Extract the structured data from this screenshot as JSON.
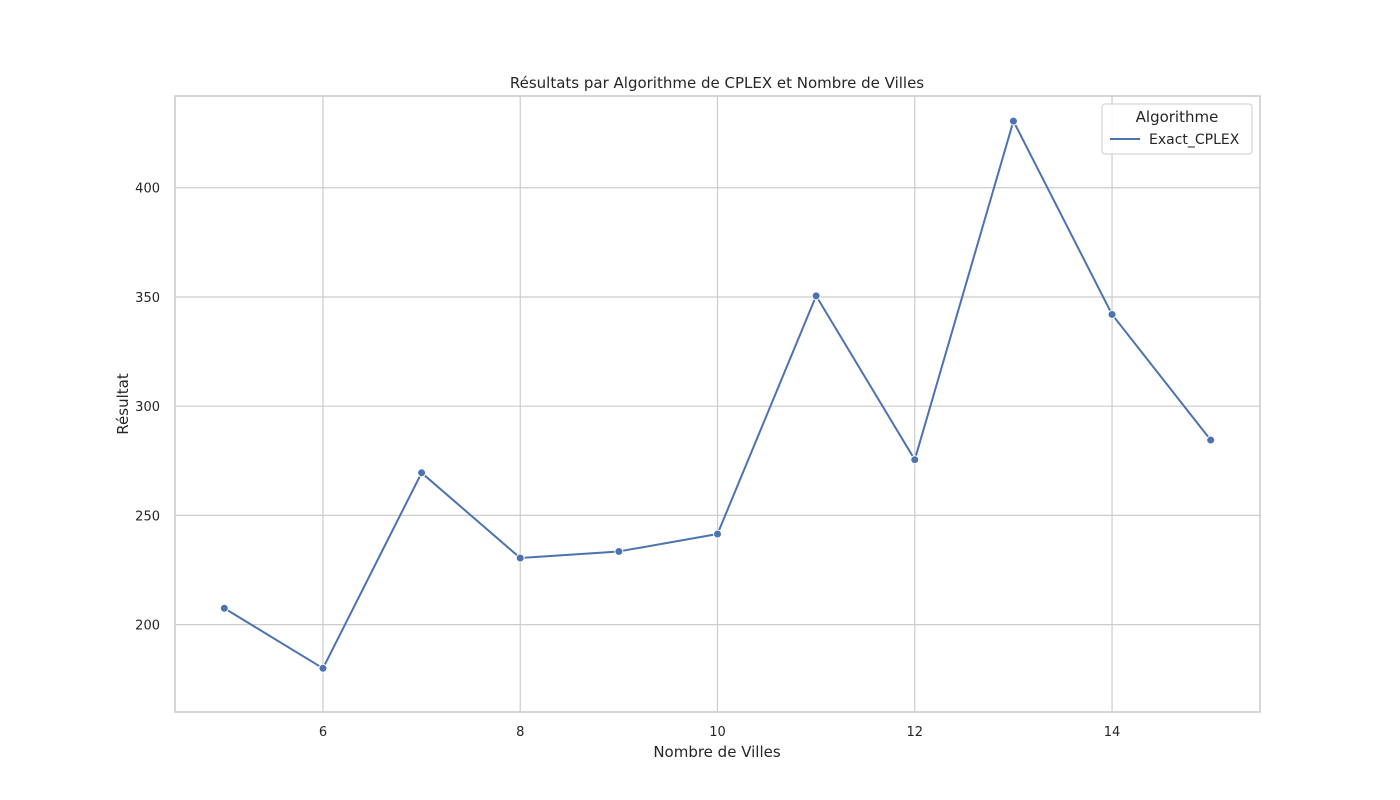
{
  "chart_data": {
    "type": "line",
    "title": "Résultats par Algorithme de CPLEX et Nombre de Villes",
    "xlabel": "Nombre de Villes",
    "ylabel": "Résultat",
    "xlim": [
      4.5,
      15.5
    ],
    "ylim": [
      160,
      442
    ],
    "x_ticks": [
      6,
      8,
      10,
      12,
      14
    ],
    "x_tick_labels": [
      "6",
      "8",
      "10",
      "12",
      "14"
    ],
    "y_ticks": [
      200,
      250,
      300,
      350,
      400
    ],
    "y_tick_labels": [
      "200",
      "250",
      "300",
      "350",
      "400"
    ],
    "grid": true,
    "legend": {
      "title": "Algorithme",
      "placement": "top-right"
    },
    "series": [
      {
        "name": "Exact_CPLEX",
        "color": "#4c72b0",
        "marker": "circle",
        "x": [
          5,
          6,
          7,
          8,
          9,
          10,
          11,
          12,
          13,
          14,
          15
        ],
        "y": [
          207.5,
          180,
          269.5,
          230.5,
          233.5,
          241.5,
          350.5,
          275.5,
          430.5,
          342,
          284.5
        ]
      }
    ],
    "colors": {
      "grid": "#cccccc",
      "frame": "#cccccc",
      "text": "#262626",
      "background": "#ffffff"
    }
  }
}
